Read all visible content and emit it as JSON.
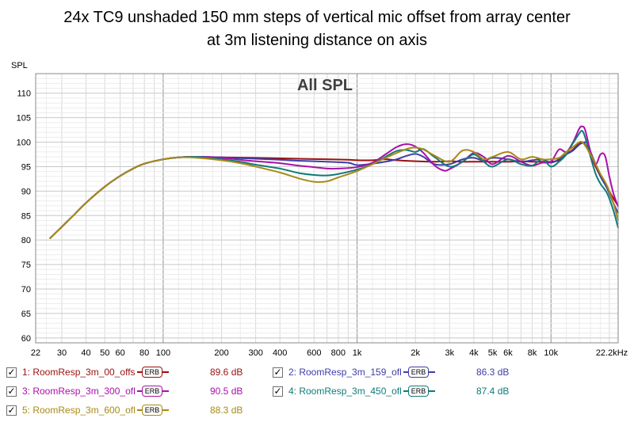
{
  "title_lines": [
    "24x TC9 unshaded 150 mm steps of vertical mic offset from array center",
    "at 3m listening distance on axis"
  ],
  "chart_data": {
    "type": "line",
    "title": "All SPL",
    "ylabel": "SPL",
    "xlabel": "",
    "xscale": "log",
    "xlim": [
      22,
      22200
    ],
    "ylim": [
      59,
      114
    ],
    "x_ticks": [
      {
        "v": 22,
        "label": "22"
      },
      {
        "v": 30,
        "label": "30"
      },
      {
        "v": 40,
        "label": "40"
      },
      {
        "v": 50,
        "label": "50"
      },
      {
        "v": 60,
        "label": "60"
      },
      {
        "v": 80,
        "label": "80"
      },
      {
        "v": 100,
        "label": "100"
      },
      {
        "v": 200,
        "label": "200"
      },
      {
        "v": 300,
        "label": "300"
      },
      {
        "v": 400,
        "label": "400"
      },
      {
        "v": 600,
        "label": "600"
      },
      {
        "v": 800,
        "label": "800"
      },
      {
        "v": 1000,
        "label": "1k"
      },
      {
        "v": 2000,
        "label": "2k"
      },
      {
        "v": 3000,
        "label": "3k"
      },
      {
        "v": 4000,
        "label": "4k"
      },
      {
        "v": 5000,
        "label": "5k"
      },
      {
        "v": 6000,
        "label": "6k"
      },
      {
        "v": 8000,
        "label": "8k"
      },
      {
        "v": 10000,
        "label": "10k"
      },
      {
        "v": 22200,
        "label": "22.2kHz"
      }
    ],
    "y_ticks": [
      60,
      65,
      70,
      75,
      80,
      85,
      90,
      95,
      100,
      105,
      110
    ],
    "grid": true,
    "legend_position": "bottom",
    "series": [
      {
        "name": "1: RoomResp_3m_00_offs",
        "color": "#9b1010",
        "value_label": "89.6 dB",
        "points": [
          [
            26,
            80.3
          ],
          [
            30,
            82.7
          ],
          [
            35,
            85.3
          ],
          [
            40,
            87.6
          ],
          [
            50,
            90.9
          ],
          [
            60,
            93.1
          ],
          [
            70,
            94.6
          ],
          [
            80,
            95.6
          ],
          [
            100,
            96.5
          ],
          [
            120,
            96.9
          ],
          [
            150,
            97.0
          ],
          [
            200,
            96.9
          ],
          [
            300,
            96.8
          ],
          [
            400,
            96.7
          ],
          [
            500,
            96.6
          ],
          [
            700,
            96.5
          ],
          [
            900,
            96.4
          ],
          [
            1000,
            96.3
          ],
          [
            1200,
            96.3
          ],
          [
            1400,
            96.5
          ],
          [
            1600,
            96.3
          ],
          [
            2000,
            96.1
          ],
          [
            2500,
            96.0
          ],
          [
            3000,
            96.1
          ],
          [
            3500,
            96.0
          ],
          [
            4000,
            96.0
          ],
          [
            5000,
            96.0
          ],
          [
            6000,
            96.0
          ],
          [
            7000,
            96.1
          ],
          [
            8000,
            96.0
          ],
          [
            9000,
            96.0
          ],
          [
            10000,
            96.0
          ],
          [
            11000,
            96.3
          ],
          [
            12000,
            97.5
          ],
          [
            13000,
            98.5
          ],
          [
            14000,
            99.8
          ],
          [
            14500,
            100.0
          ],
          [
            15000,
            99.5
          ],
          [
            16000,
            97.3
          ],
          [
            17000,
            95.0
          ],
          [
            18000,
            93.0
          ],
          [
            19500,
            90.7
          ],
          [
            21000,
            88.5
          ],
          [
            22200,
            87.0
          ]
        ]
      },
      {
        "name": "2: RoomResp_3m_159_ofl",
        "color": "#3d3ea8",
        "value_label": "86.3 dB",
        "points": [
          [
            26,
            80.3
          ],
          [
            30,
            82.7
          ],
          [
            35,
            85.3
          ],
          [
            40,
            87.6
          ],
          [
            50,
            90.9
          ],
          [
            60,
            93.1
          ],
          [
            70,
            94.6
          ],
          [
            80,
            95.6
          ],
          [
            100,
            96.5
          ],
          [
            120,
            96.9
          ],
          [
            150,
            97.0
          ],
          [
            200,
            96.9
          ],
          [
            300,
            96.6
          ],
          [
            400,
            96.4
          ],
          [
            500,
            96.2
          ],
          [
            700,
            96.0
          ],
          [
            900,
            95.8
          ],
          [
            1000,
            95.3
          ],
          [
            1200,
            95.6
          ],
          [
            1400,
            96.0
          ],
          [
            1600,
            96.5
          ],
          [
            1800,
            97.2
          ],
          [
            2000,
            97.6
          ],
          [
            2200,
            97.0
          ],
          [
            2500,
            95.5
          ],
          [
            3000,
            95.5
          ],
          [
            3500,
            96.5
          ],
          [
            4000,
            96.8
          ],
          [
            4500,
            96.2
          ],
          [
            5000,
            96.8
          ],
          [
            6000,
            96.5
          ],
          [
            7000,
            96.0
          ],
          [
            8000,
            96.3
          ],
          [
            9000,
            96.5
          ],
          [
            10000,
            95.8
          ],
          [
            11000,
            96.5
          ],
          [
            12000,
            97.5
          ],
          [
            13000,
            98.3
          ],
          [
            14000,
            99.5
          ],
          [
            15000,
            100.0
          ],
          [
            15500,
            99.5
          ],
          [
            16000,
            98.0
          ],
          [
            17000,
            95.5
          ],
          [
            18000,
            93.0
          ],
          [
            19500,
            90.5
          ],
          [
            21000,
            87.5
          ],
          [
            22200,
            85.5
          ]
        ]
      },
      {
        "name": "3: RoomResp_3m_300_ofl",
        "color": "#aa10aa",
        "value_label": "90.5 dB",
        "points": [
          [
            26,
            80.3
          ],
          [
            30,
            82.7
          ],
          [
            35,
            85.3
          ],
          [
            40,
            87.6
          ],
          [
            50,
            90.9
          ],
          [
            60,
            93.1
          ],
          [
            70,
            94.6
          ],
          [
            80,
            95.6
          ],
          [
            100,
            96.5
          ],
          [
            120,
            96.9
          ],
          [
            150,
            97.0
          ],
          [
            200,
            96.8
          ],
          [
            250,
            96.4
          ],
          [
            300,
            96.1
          ],
          [
            400,
            95.7
          ],
          [
            500,
            95.2
          ],
          [
            600,
            94.9
          ],
          [
            700,
            94.6
          ],
          [
            800,
            94.6
          ],
          [
            1000,
            94.9
          ],
          [
            1200,
            95.8
          ],
          [
            1400,
            97.5
          ],
          [
            1600,
            99.0
          ],
          [
            1800,
            99.6
          ],
          [
            2000,
            99.1
          ],
          [
            2200,
            97.8
          ],
          [
            2500,
            95.3
          ],
          [
            2800,
            94.2
          ],
          [
            3000,
            94.5
          ],
          [
            3500,
            96.0
          ],
          [
            4000,
            97.8
          ],
          [
            4500,
            97.0
          ],
          [
            5000,
            95.5
          ],
          [
            6000,
            97.2
          ],
          [
            7000,
            96.0
          ],
          [
            8000,
            95.2
          ],
          [
            9000,
            95.8
          ],
          [
            10000,
            96.0
          ],
          [
            11000,
            98.5
          ],
          [
            12000,
            98.0
          ],
          [
            13000,
            100.0
          ],
          [
            14000,
            102.8
          ],
          [
            14500,
            103.2
          ],
          [
            15000,
            102.5
          ],
          [
            16000,
            98.0
          ],
          [
            17000,
            95.5
          ],
          [
            18000,
            97.5
          ],
          [
            19000,
            97.2
          ],
          [
            20000,
            93.0
          ],
          [
            21000,
            89.5
          ],
          [
            22200,
            86.8
          ]
        ]
      },
      {
        "name": "4: RoomResp_3m_450_ofl",
        "color": "#127a7a",
        "value_label": "87.4 dB",
        "points": [
          [
            26,
            80.3
          ],
          [
            30,
            82.7
          ],
          [
            35,
            85.3
          ],
          [
            40,
            87.6
          ],
          [
            50,
            90.9
          ],
          [
            60,
            93.1
          ],
          [
            70,
            94.6
          ],
          [
            80,
            95.6
          ],
          [
            100,
            96.5
          ],
          [
            120,
            96.9
          ],
          [
            150,
            97.0
          ],
          [
            200,
            96.5
          ],
          [
            250,
            96.0
          ],
          [
            300,
            95.4
          ],
          [
            400,
            94.6
          ],
          [
            500,
            93.7
          ],
          [
            600,
            93.3
          ],
          [
            700,
            93.2
          ],
          [
            800,
            93.5
          ],
          [
            1000,
            94.4
          ],
          [
            1200,
            95.5
          ],
          [
            1400,
            97.0
          ],
          [
            1600,
            98.2
          ],
          [
            1800,
            98.4
          ],
          [
            2000,
            98.0
          ],
          [
            2200,
            98.6
          ],
          [
            2500,
            97.0
          ],
          [
            3000,
            95.0
          ],
          [
            3500,
            96.0
          ],
          [
            4000,
            97.5
          ],
          [
            4500,
            96.0
          ],
          [
            5000,
            95.0
          ],
          [
            6000,
            96.5
          ],
          [
            7000,
            95.5
          ],
          [
            8000,
            95.2
          ],
          [
            9000,
            96.5
          ],
          [
            10000,
            95.0
          ],
          [
            11000,
            96.0
          ],
          [
            12000,
            97.5
          ],
          [
            13000,
            99.8
          ],
          [
            14000,
            101.8
          ],
          [
            14500,
            102.3
          ],
          [
            15000,
            101.0
          ],
          [
            16000,
            97.0
          ],
          [
            17000,
            93.5
          ],
          [
            18000,
            91.5
          ],
          [
            19500,
            89.5
          ],
          [
            21000,
            86.0
          ],
          [
            22200,
            82.5
          ]
        ]
      },
      {
        "name": "5: RoomResp_3m_600_ofl",
        "color": "#a88a16",
        "value_label": "88.3 dB",
        "points": [
          [
            26,
            80.3
          ],
          [
            30,
            82.7
          ],
          [
            35,
            85.3
          ],
          [
            40,
            87.6
          ],
          [
            50,
            90.9
          ],
          [
            60,
            93.1
          ],
          [
            70,
            94.6
          ],
          [
            80,
            95.6
          ],
          [
            100,
            96.5
          ],
          [
            120,
            96.9
          ],
          [
            150,
            96.8
          ],
          [
            200,
            96.3
          ],
          [
            250,
            95.7
          ],
          [
            300,
            95.0
          ],
          [
            400,
            93.8
          ],
          [
            500,
            92.6
          ],
          [
            600,
            91.9
          ],
          [
            700,
            92.0
          ],
          [
            800,
            92.8
          ],
          [
            1000,
            94.1
          ],
          [
            1200,
            95.5
          ],
          [
            1500,
            97.3
          ],
          [
            1800,
            98.6
          ],
          [
            2000,
            98.9
          ],
          [
            2200,
            98.5
          ],
          [
            2500,
            97.3
          ],
          [
            3000,
            96.0
          ],
          [
            3500,
            98.3
          ],
          [
            4000,
            98.0
          ],
          [
            4500,
            96.5
          ],
          [
            5000,
            97.0
          ],
          [
            6000,
            98.0
          ],
          [
            7000,
            96.5
          ],
          [
            8000,
            97.0
          ],
          [
            9000,
            96.5
          ],
          [
            10000,
            96.5
          ],
          [
            11000,
            96.8
          ],
          [
            12000,
            98.0
          ],
          [
            13000,
            99.0
          ],
          [
            14000,
            100.0
          ],
          [
            14500,
            100.0
          ],
          [
            15000,
            99.3
          ],
          [
            16000,
            97.5
          ],
          [
            17000,
            95.5
          ],
          [
            18000,
            93.5
          ],
          [
            19500,
            91.0
          ],
          [
            21000,
            87.5
          ],
          [
            22200,
            84.0
          ]
        ]
      }
    ]
  }
}
